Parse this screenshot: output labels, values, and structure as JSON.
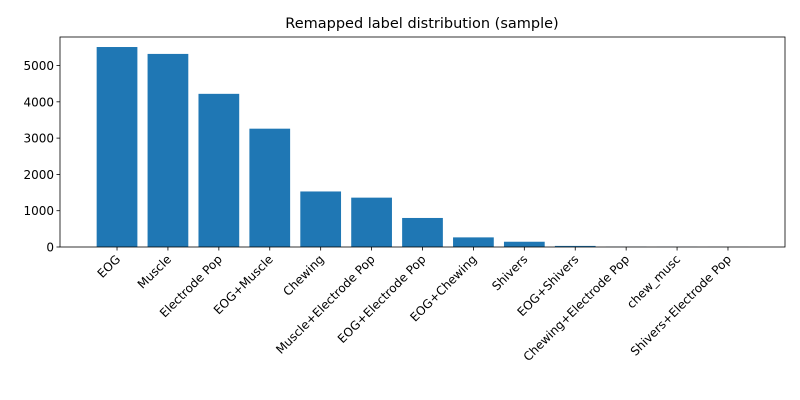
{
  "chart_data": {
    "type": "bar",
    "title": "Remapped label distribution (sample)",
    "xlabel": "",
    "ylabel": "",
    "categories": [
      "EOG",
      "Muscle",
      "Electrode Pop",
      "EOG+Muscle",
      "Chewing",
      "Muscle+Electrode Pop",
      "EOG+Electrode Pop",
      "EOG+Chewing",
      "Shivers",
      "EOG+Shivers",
      "Chewing+Electrode Pop",
      "chew_musc",
      "Shivers+Electrode Pop"
    ],
    "values": [
      5510,
      5320,
      4220,
      3260,
      1530,
      1360,
      800,
      265,
      145,
      30,
      5,
      3,
      2
    ],
    "ylim": [
      0,
      5786
    ],
    "yticks": [
      0,
      1000,
      2000,
      3000,
      4000,
      5000
    ],
    "bar_color": "#1f77b4",
    "grid": false
  }
}
